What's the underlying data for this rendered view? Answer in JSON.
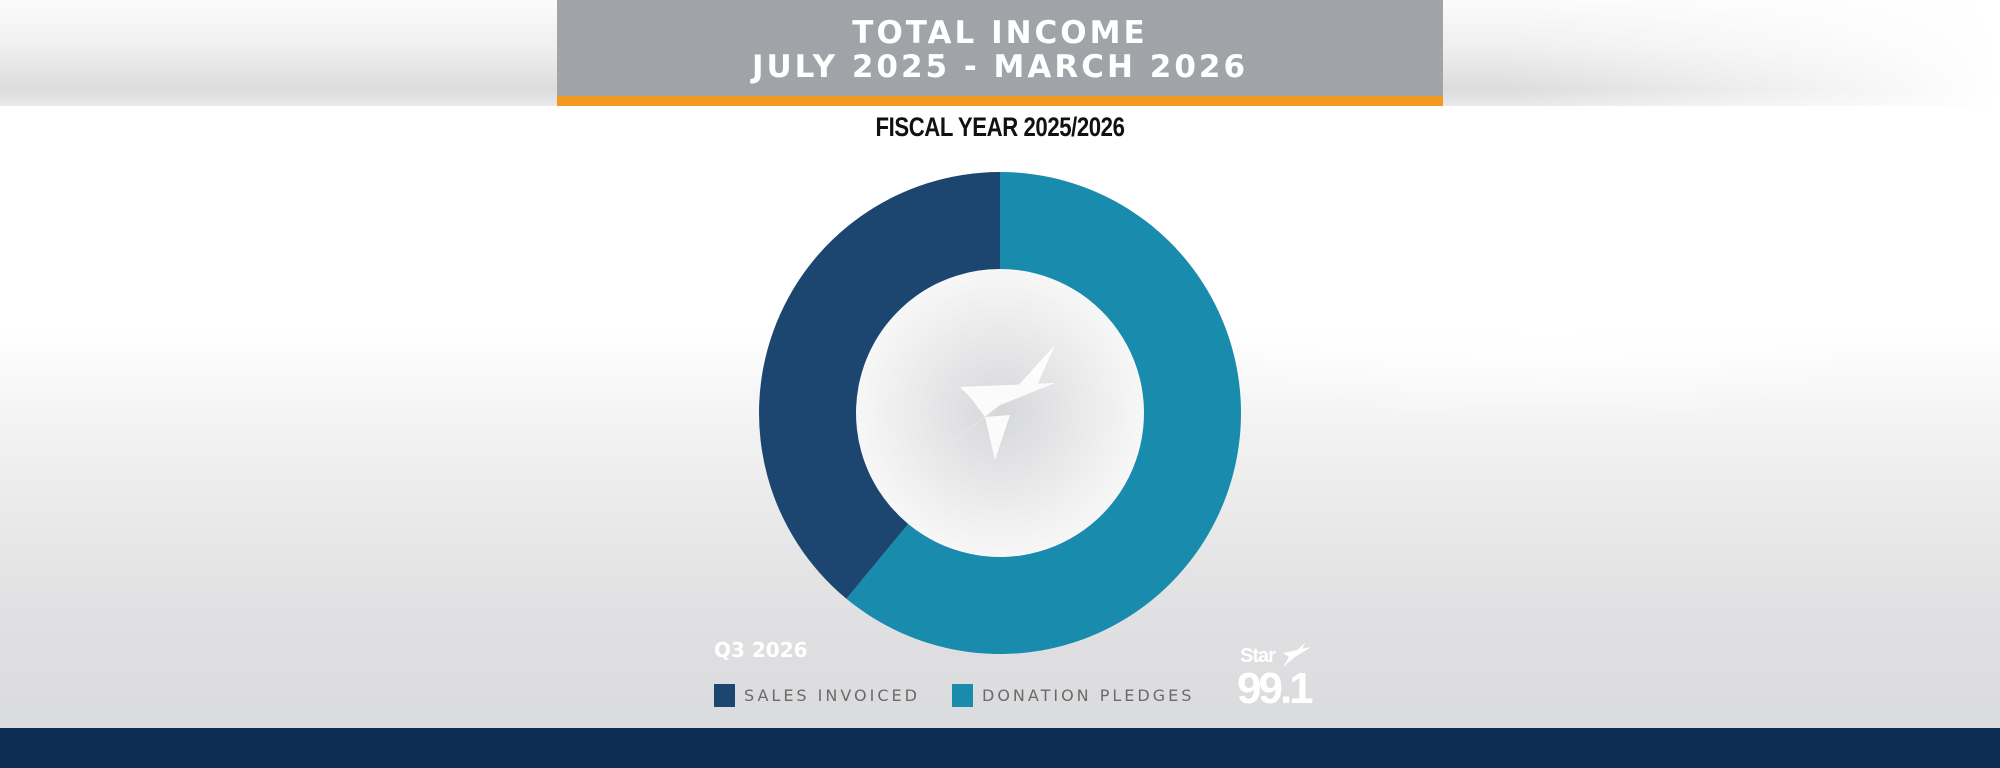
{
  "header": {
    "title_line1": "TOTAL INCOME",
    "title_line2": "JULY 2025 - MARCH 2026"
  },
  "colors": {
    "header_bg": "#a0a4a8",
    "accent": "#f29a1f",
    "footer": "#0e2d53"
  },
  "chart_data": {
    "type": "pie",
    "style": "donut",
    "title": "FISCAL YEAR 2025/2026",
    "categories": [
      "SALES INVOICED",
      "DONATION PLEDGES"
    ],
    "values": [
      39,
      61
    ],
    "unit": "%",
    "colors": [
      "#1c4570",
      "#198cae"
    ],
    "legend": "bottom",
    "center_icon": "star-plane-icon"
  },
  "footer_info": {
    "quarter": "Q3 2026"
  },
  "logo": {
    "brand": "Star",
    "number": "99.1",
    "icon": "star-plane-icon"
  }
}
